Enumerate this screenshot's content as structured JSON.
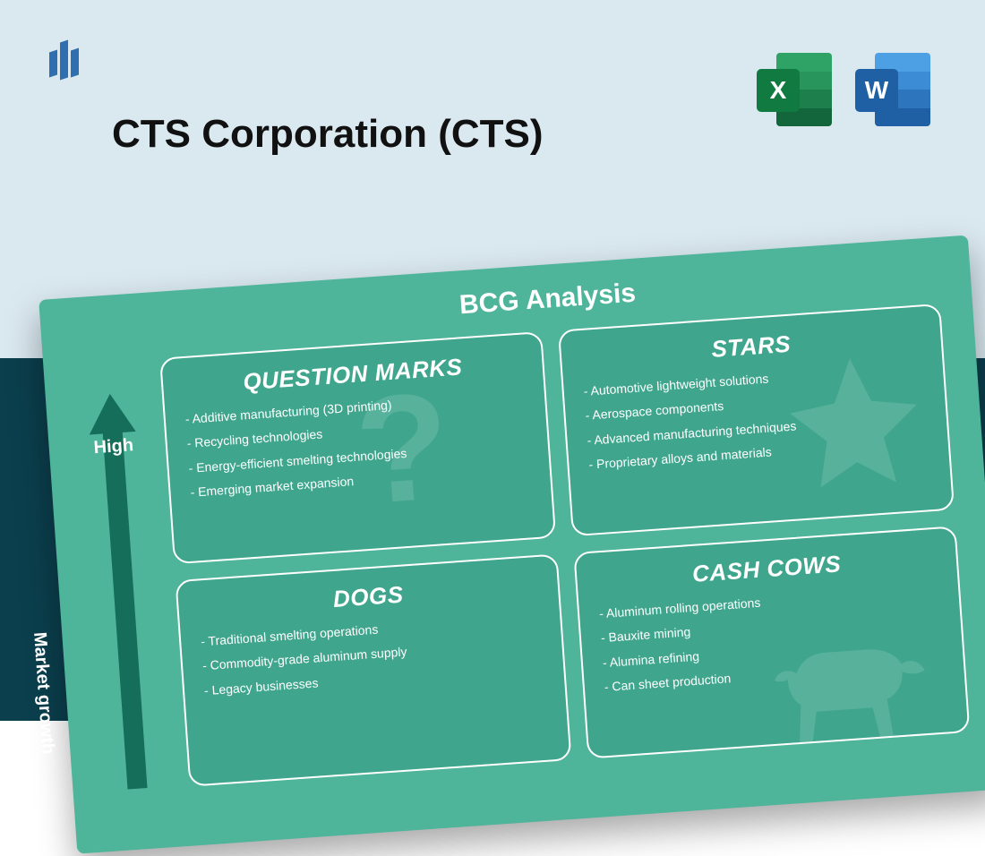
{
  "colors": {
    "top_band": "#dae8f0",
    "bottom_band": "#0b3f4d",
    "logo_bar": "#2f6fb0",
    "title_text": "#111111",
    "matrix_bg": "#4eb49a",
    "quadrant_bg": "#3fa68d",
    "quadrant_border": "#ffffff",
    "axis_arrow": "#156e5a",
    "text_on_matrix": "#ffffff",
    "watermark": "rgba(255,255,255,0.13)",
    "excel_badge": "#117a41",
    "excel_stripes": [
      "#2fa266",
      "#27955c",
      "#1d7f4c",
      "#13663b"
    ],
    "word_badge": "#1f5fa3",
    "word_stripes": [
      "#4da0e3",
      "#3b8cd4",
      "#2d76bd",
      "#1f5fa3"
    ]
  },
  "title": "CTS Corporation (CTS)",
  "app_icons": {
    "excel_letter": "X",
    "word_letter": "W"
  },
  "matrix": {
    "type": "bcg-matrix",
    "title": "BCG Analysis",
    "y_axis": {
      "label": "Market growth",
      "high_label": "High"
    },
    "rotation_deg": -4,
    "quadrants": {
      "question_marks": {
        "heading": "QUESTION MARKS",
        "watermark": "?",
        "items": [
          "Additive manufacturing (3D printing)",
          "Recycling technologies",
          "Energy-efficient smelting technologies",
          "Emerging market expansion"
        ]
      },
      "stars": {
        "heading": "STARS",
        "watermark": "star",
        "items": [
          "Automotive lightweight solutions",
          "Aerospace components",
          "Advanced manufacturing techniques",
          "Proprietary alloys and materials"
        ]
      },
      "dogs": {
        "heading": "DOGS",
        "items": [
          "Traditional smelting operations",
          "Commodity-grade aluminum supply",
          "Legacy businesses"
        ]
      },
      "cash_cows": {
        "heading": "CASH COWS",
        "watermark": "cow",
        "items": [
          "Aluminum rolling operations",
          "Bauxite mining",
          "Alumina refining",
          "Can sheet production"
        ]
      }
    }
  }
}
